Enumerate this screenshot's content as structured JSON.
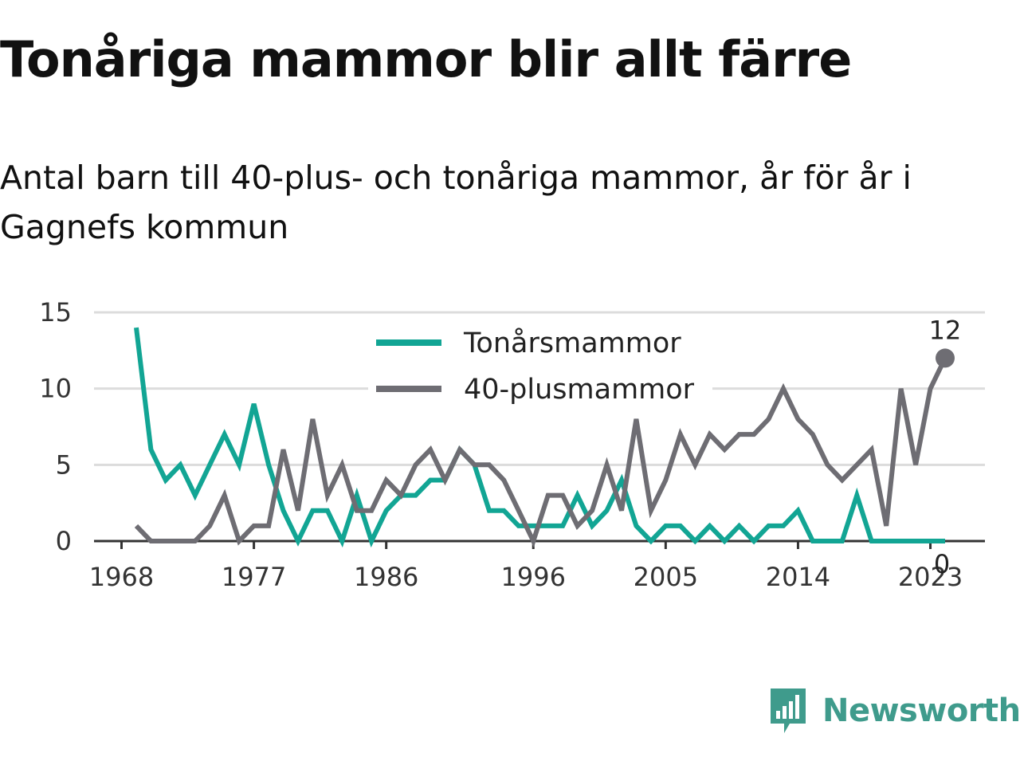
{
  "header": {
    "title": "Tonåriga mammor blir allt färre",
    "subtitle": "Antal barn till 40-plus- och tonåriga mammor, år för år i Gagnefs kommun"
  },
  "brand": {
    "name": "Newsworthy",
    "icon": "newsworthy-logo-icon",
    "color": "#3f9b8c"
  },
  "chart_data": {
    "type": "line",
    "title": "Tonåriga mammor blir allt färre",
    "subtitle": "Antal barn till 40-plus- och tonåriga mammor, år för år i Gagnefs kommun",
    "xlabel": "",
    "ylabel": "",
    "x": [
      1969,
      1970,
      1971,
      1972,
      1973,
      1974,
      1975,
      1976,
      1977,
      1978,
      1979,
      1980,
      1981,
      1982,
      1983,
      1984,
      1985,
      1986,
      1987,
      1988,
      1989,
      1990,
      1991,
      1992,
      1993,
      1994,
      1995,
      1996,
      1997,
      1998,
      1999,
      2000,
      2001,
      2002,
      2003,
      2004,
      2005,
      2006,
      2007,
      2008,
      2009,
      2010,
      2011,
      2012,
      2013,
      2014,
      2015,
      2016,
      2017,
      2018,
      2019,
      2020,
      2021,
      2022,
      2023,
      2024
    ],
    "x_ticks": [
      "1968",
      "1977",
      "1986",
      "1996",
      "2005",
      "2014",
      "2023"
    ],
    "x_tick_values": [
      1968,
      1977,
      1986,
      1996,
      2005,
      2014,
      2023
    ],
    "xlim": [
      1968,
      2024
    ],
    "ylim": [
      0,
      15
    ],
    "y_ticks": [
      0,
      5,
      10,
      15
    ],
    "grid": true,
    "legend_position": "top-center",
    "series": [
      {
        "name": "Tonårsmammor",
        "color": "#12a594",
        "values": [
          14,
          6,
          4,
          5,
          3,
          5,
          7,
          5,
          9,
          5,
          2,
          0,
          2,
          2,
          0,
          3,
          0,
          2,
          3,
          3,
          4,
          4,
          6,
          5,
          2,
          2,
          1,
          1,
          1,
          1,
          3,
          1,
          2,
          4,
          1,
          0,
          1,
          1,
          0,
          1,
          0,
          1,
          0,
          1,
          1,
          2,
          0,
          0,
          0,
          3,
          0,
          0,
          0,
          0,
          0,
          0
        ],
        "end_label": "0"
      },
      {
        "name": "40-plusmammor",
        "color": "#6e6d73",
        "values": [
          1,
          0,
          0,
          0,
          0,
          1,
          3,
          0,
          1,
          1,
          6,
          2,
          8,
          3,
          5,
          2,
          2,
          4,
          3,
          5,
          6,
          4,
          6,
          5,
          5,
          4,
          2,
          0,
          3,
          3,
          1,
          2,
          5,
          2,
          8,
          2,
          4,
          7,
          5,
          7,
          6,
          7,
          7,
          8,
          10,
          8,
          7,
          5,
          4,
          5,
          6,
          1,
          10,
          5,
          10,
          12
        ],
        "end_label": "12"
      }
    ]
  }
}
